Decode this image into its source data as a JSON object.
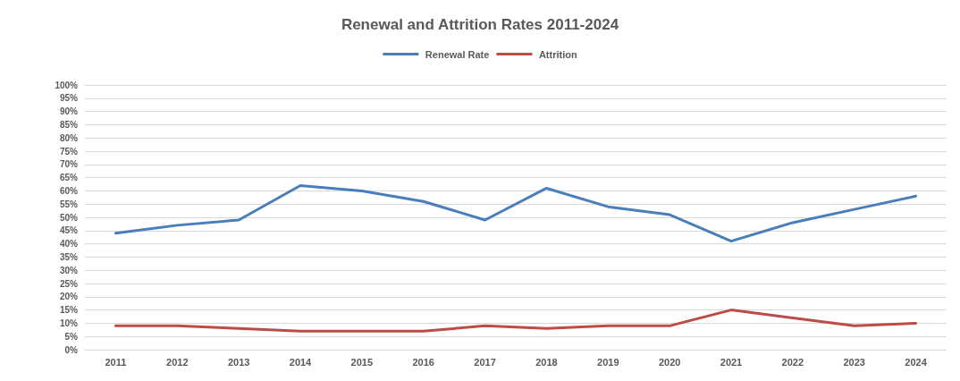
{
  "chart_data": {
    "type": "line",
    "title": "Renewal and Attrition Rates 2011-2024",
    "categories": [
      "2011",
      "2012",
      "2013",
      "2014",
      "2015",
      "2016",
      "2017",
      "2018",
      "2019",
      "2020",
      "2021",
      "2022",
      "2023",
      "2024"
    ],
    "series": [
      {
        "name": "Renewal Rate",
        "color": "#4a7ebb",
        "values": [
          44,
          47,
          49,
          62,
          60,
          56,
          49,
          61,
          54,
          51,
          41,
          48,
          53,
          58
        ]
      },
      {
        "name": "Attrition",
        "color": "#be4b48",
        "values": [
          9,
          9,
          8,
          7,
          7,
          7,
          9,
          8,
          9,
          9,
          15,
          12,
          9,
          10
        ]
      }
    ],
    "ylim": [
      0,
      100
    ],
    "yticks": [
      {
        "value": 0,
        "label": "0%"
      },
      {
        "value": 5,
        "label": "5%"
      },
      {
        "value": 10,
        "label": "10%"
      },
      {
        "value": 15,
        "label": "15%"
      },
      {
        "value": 20,
        "label": "20%"
      },
      {
        "value": 25,
        "label": "25%"
      },
      {
        "value": 30,
        "label": "30%"
      },
      {
        "value": 35,
        "label": "35%"
      },
      {
        "value": 40,
        "label": "40%"
      },
      {
        "value": 45,
        "label": "45%"
      },
      {
        "value": 50,
        "label": "50%"
      },
      {
        "value": 55,
        "label": "55%"
      },
      {
        "value": 60,
        "label": "60%"
      },
      {
        "value": 65,
        "label": "65%"
      },
      {
        "value": 70,
        "label": "70%"
      },
      {
        "value": 75,
        "label": "75%"
      },
      {
        "value": 80,
        "label": "80%"
      },
      {
        "value": 85,
        "label": "85%"
      },
      {
        "value": 90,
        "label": "90%"
      },
      {
        "value": 95,
        "label": "95%"
      },
      {
        "value": 100,
        "label": "100%"
      }
    ],
    "grid": "y",
    "legend": "top",
    "marker": "none",
    "line_style": "solid"
  }
}
